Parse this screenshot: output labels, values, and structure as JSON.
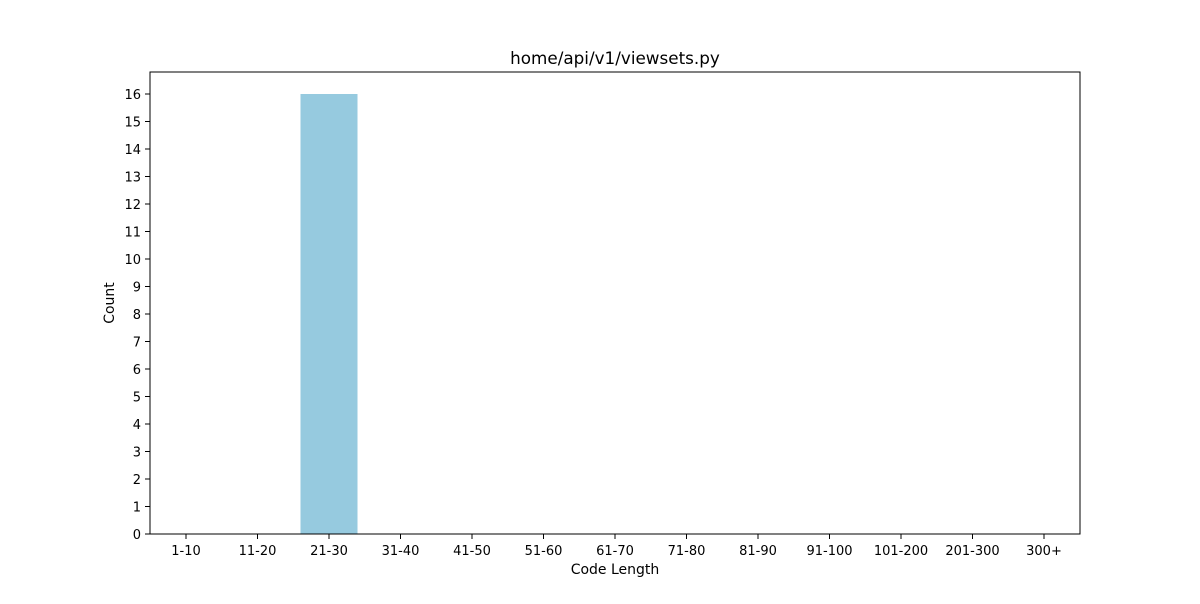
{
  "chart_data": {
    "type": "bar",
    "title": "home/api/v1/viewsets.py",
    "xlabel": "Code Length",
    "ylabel": "Count",
    "categories": [
      "1-10",
      "11-20",
      "21-30",
      "31-40",
      "41-50",
      "51-60",
      "61-70",
      "71-80",
      "81-90",
      "91-100",
      "101-200",
      "201-300",
      "300+"
    ],
    "values": [
      0,
      0,
      16,
      0,
      0,
      0,
      0,
      0,
      0,
      0,
      0,
      0,
      0
    ],
    "ylim": [
      0,
      16.8
    ],
    "yticks": [
      0,
      1,
      2,
      3,
      4,
      5,
      6,
      7,
      8,
      9,
      10,
      11,
      12,
      13,
      14,
      15,
      16
    ],
    "bar_color": "#96cadf",
    "grid": false,
    "legend": "none"
  }
}
